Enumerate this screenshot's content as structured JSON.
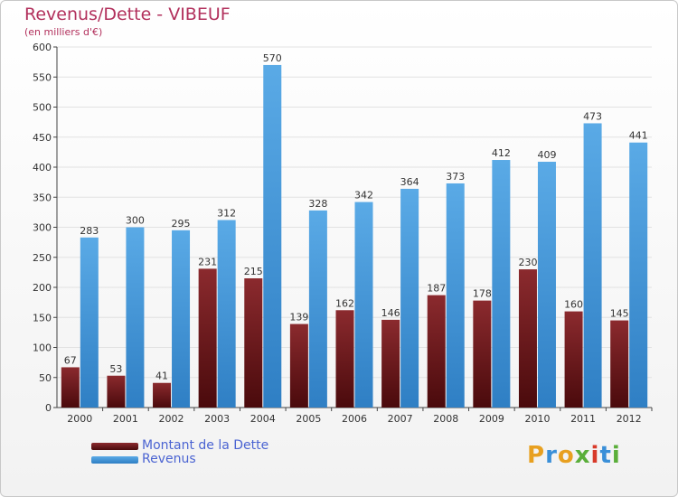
{
  "chart_data": {
    "type": "bar",
    "title": "Revenus/Dette - VIBEUF",
    "subtitle": "(en milliers d'€)",
    "categories": [
      "2000",
      "2001",
      "2002",
      "2003",
      "2004",
      "2005",
      "2006",
      "2007",
      "2008",
      "2009",
      "2010",
      "2011",
      "2012"
    ],
    "series": [
      {
        "name": "Montant de la Dette",
        "values": [
          67,
          53,
          41,
          231,
          215,
          139,
          162,
          146,
          187,
          178,
          230,
          160,
          145
        ],
        "color_top": "#8b2a2e",
        "color_bottom": "#4a0a0c"
      },
      {
        "name": "Revenus",
        "values": [
          283,
          300,
          295,
          312,
          570,
          328,
          342,
          364,
          373,
          412,
          409,
          473,
          441
        ],
        "color_top": "#5aaae6",
        "color_bottom": "#2f7fc4"
      }
    ],
    "ylim": [
      0,
      600
    ],
    "yticks": [
      0,
      50,
      100,
      150,
      200,
      250,
      300,
      350,
      400,
      450,
      500,
      550,
      600
    ],
    "grid": true,
    "legend_position": "bottom-left"
  },
  "legend": {
    "dette_label": "Montant de la Dette",
    "revenus_label": "Revenus"
  },
  "logo": {
    "letters": [
      "P",
      "r",
      "o",
      "x",
      "i",
      "t",
      "i"
    ],
    "colors": [
      "#e8a020",
      "#3a8fd8",
      "#e8a020",
      "#5aae3a",
      "#d83a2a",
      "#3a8fd8",
      "#5aae3a"
    ]
  }
}
